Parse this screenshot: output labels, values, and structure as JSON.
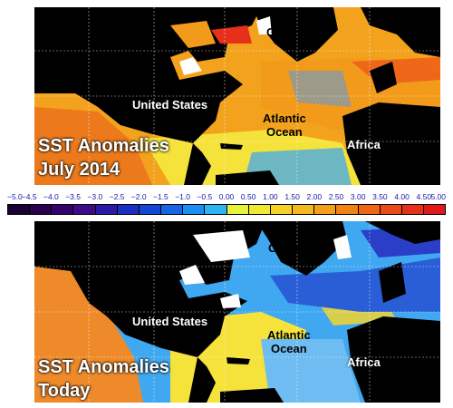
{
  "panels": {
    "top": {
      "title_line1": "SST Anomalies",
      "title_line2": "July 2014",
      "labels": {
        "greenland": "Greenland",
        "united_states": "United States",
        "atlantic_line1": "Atlantic",
        "atlantic_line2": "Ocean",
        "africa": "Africa"
      }
    },
    "bottom": {
      "title_line1": "SST Anomalies",
      "title_line2": "Today",
      "labels": {
        "greenland": "Greenland",
        "united_states": "United States",
        "atlantic_line1": "Atlantic",
        "atlantic_line2": "Ocean",
        "africa": "Africa"
      }
    }
  },
  "colorbar": {
    "ticks": [
      "−5.0",
      "−4.5",
      "−4.0",
      "−3.5",
      "−3.0",
      "−2.5",
      "−2.0",
      "−1.5",
      "−1.0",
      "−0.5",
      "0.00",
      "0.50",
      "1.00",
      "1.50",
      "2.00",
      "2.50",
      "3.00",
      "3.50",
      "4.00",
      "4.50",
      "5.00"
    ],
    "colors": [
      "#1a0033",
      "#2a004d",
      "#38006b",
      "#3d0a8a",
      "#2a1aa8",
      "#1a2ec2",
      "#1446d6",
      "#1466e6",
      "#1a8ef2",
      "#2eb4f5",
      "#e8f23a",
      "#f2ea2e",
      "#f5d126",
      "#f5b81e",
      "#f59e1a",
      "#f28216",
      "#ef6616",
      "#ea4a18",
      "#e6301a",
      "#e0181c"
    ],
    "tick_color": "#1a1aa8"
  },
  "map_colors": {
    "land": "#000000",
    "ice": "#ffffff",
    "warm": "#f2a21c",
    "hot": "#ec5a18",
    "mild": "#f5e23a",
    "cool": "#3fa8f0",
    "cold": "#2a3ec8"
  }
}
